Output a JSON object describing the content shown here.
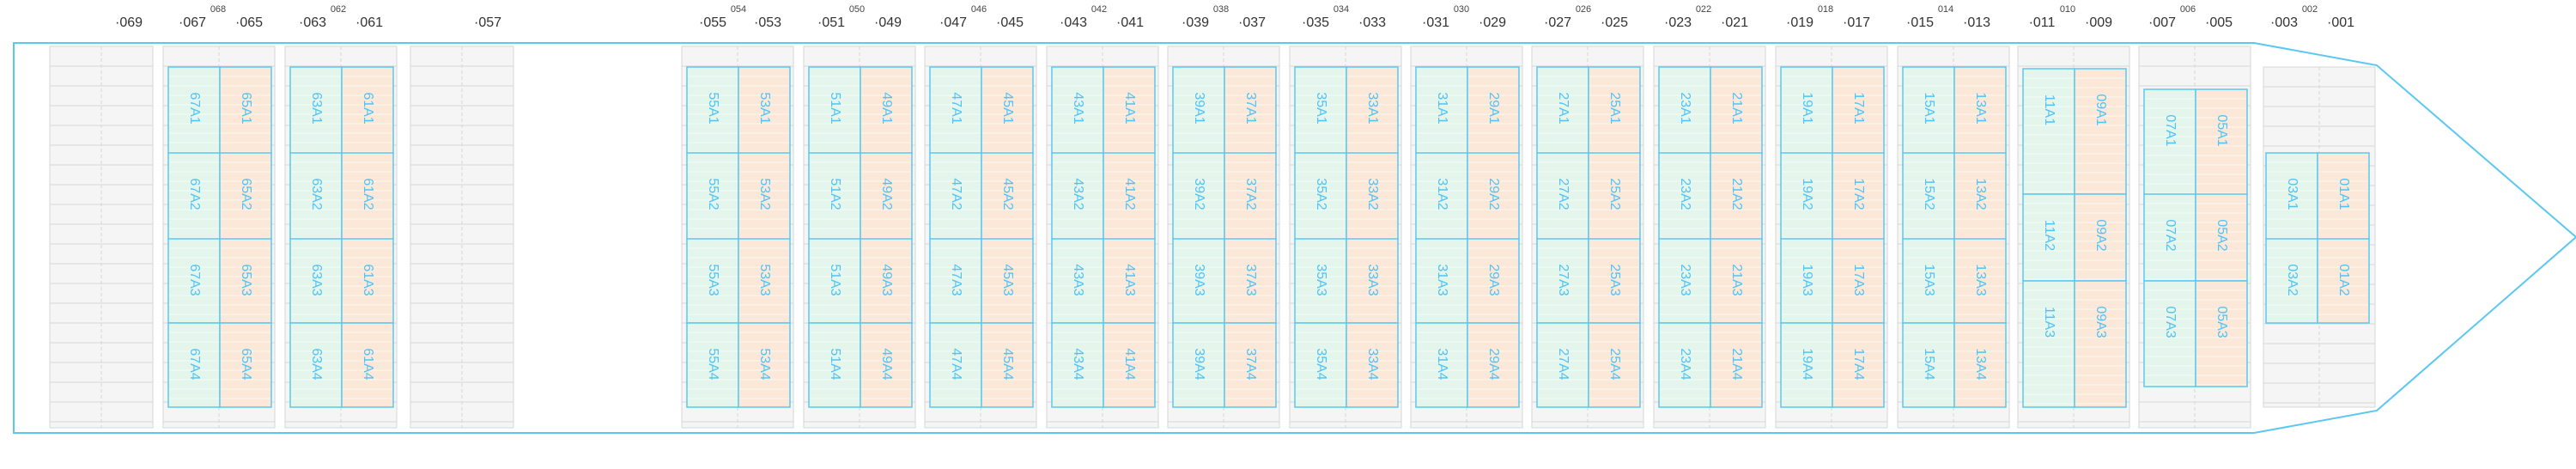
{
  "colors": {
    "hull": "#5bc8f2",
    "green_fill": "#e4f6ec",
    "orange_fill": "#fbe8d8",
    "empty_fill": "#f5f5f5",
    "empty_stroke": "#d6d6d6",
    "label": "#4fc3f7"
  },
  "bay_labels": [
    {
      "text": "069",
      "sup": ""
    },
    {
      "text": "067",
      "sup": "068"
    },
    {
      "text": "065",
      "sup": ""
    },
    {
      "text": "063",
      "sup": "062"
    },
    {
      "text": "061",
      "sup": ""
    },
    {
      "text": "057",
      "sup": ""
    },
    {
      "text": "055",
      "sup": "054"
    },
    {
      "text": "053",
      "sup": ""
    },
    {
      "text": "051",
      "sup": "050"
    },
    {
      "text": "049",
      "sup": ""
    },
    {
      "text": "047",
      "sup": "046"
    },
    {
      "text": "045",
      "sup": ""
    },
    {
      "text": "043",
      "sup": "042"
    },
    {
      "text": "041",
      "sup": ""
    },
    {
      "text": "039",
      "sup": "038"
    },
    {
      "text": "037",
      "sup": ""
    },
    {
      "text": "035",
      "sup": "034"
    },
    {
      "text": "033",
      "sup": ""
    },
    {
      "text": "031",
      "sup": "030"
    },
    {
      "text": "029",
      "sup": ""
    },
    {
      "text": "027",
      "sup": "026"
    },
    {
      "text": "025",
      "sup": ""
    },
    {
      "text": "023",
      "sup": "022"
    },
    {
      "text": "021",
      "sup": ""
    },
    {
      "text": "019",
      "sup": "018"
    },
    {
      "text": "017",
      "sup": ""
    },
    {
      "text": "015",
      "sup": "014"
    },
    {
      "text": "013",
      "sup": ""
    },
    {
      "text": "011",
      "sup": "010"
    },
    {
      "text": "009",
      "sup": ""
    },
    {
      "text": "007",
      "sup": "006"
    },
    {
      "text": "005",
      "sup": ""
    },
    {
      "text": "003",
      "sup": "002"
    },
    {
      "text": "001",
      "sup": ""
    }
  ],
  "bays": [
    {
      "id": "67-65",
      "cols": [
        {
          "color": "green",
          "slots": [
            "67A1",
            "67A2",
            "67A3",
            "67A4"
          ]
        },
        {
          "color": "orange",
          "slots": [
            "65A1",
            "65A2",
            "65A3",
            "65A4"
          ]
        }
      ]
    },
    {
      "id": "63-61",
      "cols": [
        {
          "color": "green",
          "slots": [
            "63A1",
            "63A2",
            "63A3",
            "63A4"
          ]
        },
        {
          "color": "orange",
          "slots": [
            "61A1",
            "61A2",
            "61A3",
            "61A4"
          ]
        }
      ]
    },
    {
      "id": "55-53",
      "cols": [
        {
          "color": "green",
          "slots": [
            "55A1",
            "55A2",
            "55A3",
            "55A4"
          ]
        },
        {
          "color": "orange",
          "slots": [
            "53A1",
            "53A2",
            "53A3",
            "53A4"
          ]
        }
      ]
    },
    {
      "id": "51-49",
      "cols": [
        {
          "color": "green",
          "slots": [
            "51A1",
            "51A2",
            "51A3",
            "51A4"
          ]
        },
        {
          "color": "orange",
          "slots": [
            "49A1",
            "49A2",
            "49A3",
            "49A4"
          ]
        }
      ]
    },
    {
      "id": "47-45",
      "cols": [
        {
          "color": "green",
          "slots": [
            "47A1",
            "47A2",
            "47A3",
            "47A4"
          ]
        },
        {
          "color": "orange",
          "slots": [
            "45A1",
            "45A2",
            "45A3",
            "45A4"
          ]
        }
      ]
    },
    {
      "id": "43-41",
      "cols": [
        {
          "color": "green",
          "slots": [
            "43A1",
            "43A2",
            "43A3",
            "43A4"
          ]
        },
        {
          "color": "orange",
          "slots": [
            "41A1",
            "41A2",
            "41A3",
            "41A4"
          ]
        }
      ]
    },
    {
      "id": "39-37",
      "cols": [
        {
          "color": "green",
          "slots": [
            "39A1",
            "39A2",
            "39A3",
            "39A4"
          ]
        },
        {
          "color": "orange",
          "slots": [
            "37A1",
            "37A2",
            "37A3",
            "37A4"
          ]
        }
      ]
    },
    {
      "id": "35-33",
      "cols": [
        {
          "color": "green",
          "slots": [
            "35A1",
            "35A2",
            "35A3",
            "35A4"
          ]
        },
        {
          "color": "orange",
          "slots": [
            "33A1",
            "33A2",
            "33A3",
            "33A4"
          ]
        }
      ]
    },
    {
      "id": "31-29",
      "cols": [
        {
          "color": "green",
          "slots": [
            "31A1",
            "31A2",
            "31A3",
            "31A4"
          ]
        },
        {
          "color": "orange",
          "slots": [
            "29A1",
            "29A2",
            "29A3",
            "29A4"
          ]
        }
      ]
    },
    {
      "id": "27-25",
      "cols": [
        {
          "color": "green",
          "slots": [
            "27A1",
            "27A2",
            "27A3",
            "27A4"
          ]
        },
        {
          "color": "orange",
          "slots": [
            "25A1",
            "25A2",
            "25A3",
            "25A4"
          ]
        }
      ]
    },
    {
      "id": "23-21",
      "cols": [
        {
          "color": "green",
          "slots": [
            "23A1",
            "23A2",
            "23A3",
            "23A4"
          ]
        },
        {
          "color": "orange",
          "slots": [
            "21A1",
            "21A2",
            "21A3",
            "21A4"
          ]
        }
      ]
    },
    {
      "id": "19-17",
      "cols": [
        {
          "color": "green",
          "slots": [
            "19A1",
            "19A2",
            "19A3",
            "19A4"
          ]
        },
        {
          "color": "orange",
          "slots": [
            "17A1",
            "17A2",
            "17A3",
            "17A4"
          ]
        }
      ]
    },
    {
      "id": "15-13",
      "cols": [
        {
          "color": "green",
          "slots": [
            "15A1",
            "15A2",
            "15A3",
            "15A4"
          ]
        },
        {
          "color": "orange",
          "slots": [
            "13A1",
            "13A2",
            "13A3",
            "13A4"
          ]
        }
      ]
    },
    {
      "id": "11-09",
      "cols": [
        {
          "color": "green",
          "slots": [
            "11A1",
            "11A2",
            "11A3"
          ]
        },
        {
          "color": "orange",
          "slots": [
            "09A1",
            "09A2",
            "09A3"
          ]
        }
      ]
    },
    {
      "id": "07-05",
      "cols": [
        {
          "color": "green",
          "slots": [
            "07A1",
            "07A2",
            "07A3"
          ]
        },
        {
          "color": "orange",
          "slots": [
            "05A1",
            "05A2",
            "05A3"
          ]
        }
      ]
    },
    {
      "id": "03-01",
      "cols": [
        {
          "color": "green",
          "slots": [
            "03A1",
            "03A2"
          ]
        },
        {
          "color": "orange",
          "slots": [
            "01A1",
            "01A2"
          ]
        }
      ]
    }
  ]
}
